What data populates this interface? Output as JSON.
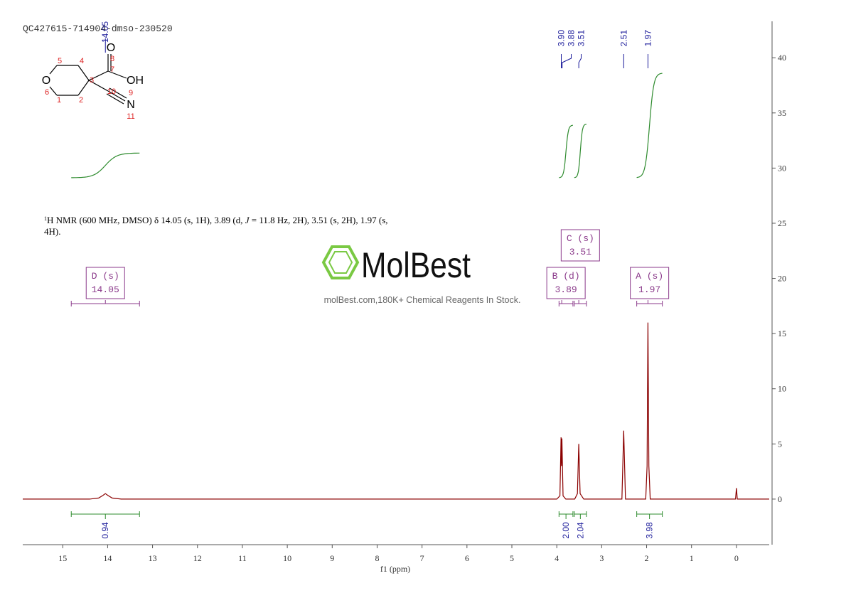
{
  "chart_data": {
    "type": "line",
    "title": "QC427615-714904-dmso-230520",
    "x_label": "f1 (ppm)",
    "x": [
      15.89,
      14.4,
      14.2,
      14.1,
      14.05,
      14.0,
      13.9,
      13.7,
      4.0,
      3.93,
      3.905,
      3.895,
      3.885,
      3.86,
      3.8,
      3.6,
      3.54,
      3.51,
      3.48,
      3.4,
      2.55,
      2.51,
      2.47,
      2.02,
      1.99,
      1.97,
      1.95,
      1.92,
      0.02,
      0.0,
      -0.02,
      -0.73
    ],
    "values": [
      0,
      0,
      0.1,
      0.35,
      0.5,
      0.35,
      0.1,
      0,
      0,
      0.3,
      5.6,
      3,
      5.5,
      0.3,
      0,
      0,
      0.5,
      5.0,
      0.5,
      0,
      0,
      6.2,
      0,
      0,
      3,
      16,
      3,
      0,
      0,
      1.0,
      0,
      0
    ],
    "color": "#8b0000",
    "xlim": [
      15.89,
      -0.73
    ],
    "ylim": [
      -4.13,
      43.3
    ],
    "xticks": [
      15,
      14,
      13,
      12,
      11,
      10,
      9,
      8,
      7,
      6,
      5,
      4,
      3,
      2,
      1,
      0
    ],
    "yticks": [
      0,
      5,
      10,
      15,
      20,
      25,
      30,
      35,
      40
    ],
    "y_axis_side": "right",
    "peak_labels": {
      "values": [
        14.05,
        3.9,
        3.88,
        3.51,
        2.51,
        1.97
      ],
      "value_labels": [
        "14.05",
        "3.90",
        "3.88",
        "3.51",
        "2.51",
        "1.97"
      ],
      "color": "#1a1a9a"
    },
    "integrals": {
      "ranges": [
        [
          14.81,
          13.29
        ],
        [
          3.95,
          3.64
        ],
        [
          3.61,
          3.34
        ],
        [
          2.22,
          1.65
        ]
      ],
      "values": [
        0.94,
        2.0,
        2.04,
        3.98
      ],
      "value_labels": [
        "0.94",
        "2.00",
        "2.04",
        "3.98"
      ],
      "color": "#2e8b2e"
    },
    "multiplets": [
      {
        "name": "D (s)",
        "shift": 14.05,
        "range": [
          14.81,
          13.29
        ]
      },
      {
        "name": "B (d)",
        "shift": 3.89,
        "range": [
          3.95,
          3.64
        ]
      },
      {
        "name": "C (s)",
        "shift": 3.51,
        "range": [
          3.61,
          3.34
        ]
      },
      {
        "name": "A (s)",
        "shift": 1.97,
        "range": [
          2.22,
          1.65
        ]
      }
    ],
    "annotation": [
      "1",
      "H NMR (600 MHz, DMSO) δ 14.05 (s, 1H), 3.89 (d, ",
      "J",
      " = 11.8 Hz, 2H), 3.51 (s, 2H), 1.97 (s,",
      "4H)."
    ],
    "watermark": {
      "brand": "MolBest",
      "tagline": "molBest.com,180K+ Chemical Reagents In Stock."
    },
    "structure": {
      "atoms": [
        "O",
        "O",
        "OH",
        "N"
      ],
      "numbers": [
        "1",
        "2",
        "3",
        "4",
        "5",
        "6",
        "7",
        "8",
        "9",
        "10",
        "11"
      ]
    }
  }
}
